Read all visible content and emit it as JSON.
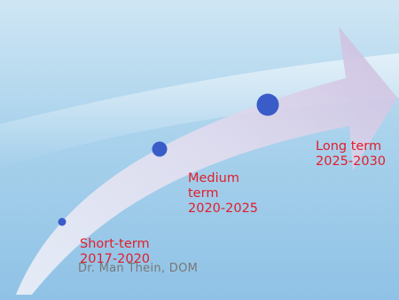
{
  "diagram": {
    "stages": [
      {
        "label": "Short-term\n2017-2020"
      },
      {
        "label": "Medium\nterm\n2020-2025"
      },
      {
        "label": "Long term\n2025-2030"
      }
    ],
    "credit": "Dr. Man Thein, DOM",
    "colors": {
      "label": "#e21d2b",
      "dot": "#3a5cc8",
      "arrow_light": "#ffffff",
      "arrow_dark": "#c8b8dc"
    }
  }
}
